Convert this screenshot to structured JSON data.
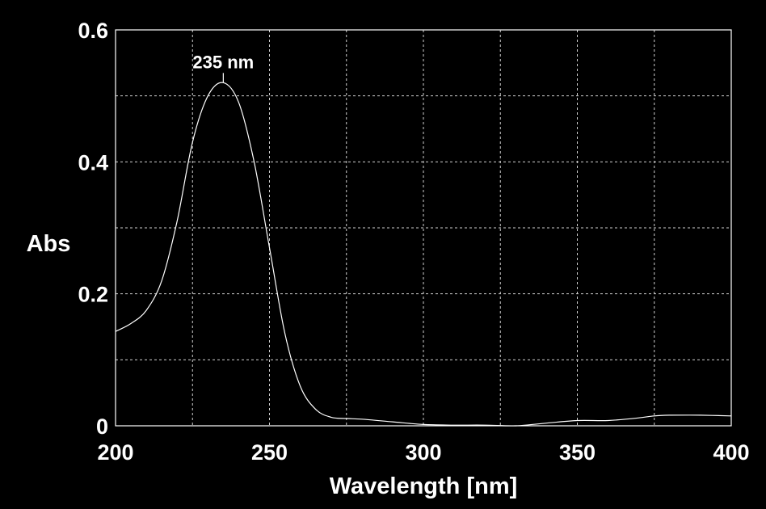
{
  "chart_data": {
    "type": "line",
    "xlabel": "Wavelength [nm]",
    "ylabel": "Abs",
    "xlim": [
      200,
      400
    ],
    "ylim": [
      0,
      0.6
    ],
    "x_ticks": [
      200,
      250,
      300,
      350,
      400
    ],
    "x_tick_labels": [
      "200",
      "250",
      "300",
      "350",
      "400"
    ],
    "y_ticks": [
      0,
      0.2,
      0.4,
      0.6
    ],
    "y_tick_labels": [
      "0",
      "0.2",
      "0.4",
      "0.6"
    ],
    "grid": true,
    "background": "#000000",
    "line_color": "#ffffff",
    "series": [
      {
        "x": [
          200,
          205,
          210,
          215,
          220,
          225,
          230,
          235,
          240,
          245,
          250,
          255,
          260,
          265,
          270,
          275,
          280,
          290,
          300,
          310,
          320,
          330,
          340,
          350,
          360,
          370,
          375,
          380,
          390,
          400
        ],
        "values": [
          0.143,
          0.155,
          0.175,
          0.22,
          0.31,
          0.43,
          0.5,
          0.52,
          0.49,
          0.4,
          0.27,
          0.14,
          0.06,
          0.025,
          0.013,
          0.011,
          0.01,
          0.006,
          0.002,
          0.001,
          0.001,
          0.0,
          0.004,
          0.008,
          0.008,
          0.012,
          0.015,
          0.016,
          0.016,
          0.015
        ]
      }
    ],
    "annotations": [
      {
        "text": "235 nm",
        "x": 235,
        "y": 0.52
      }
    ]
  }
}
